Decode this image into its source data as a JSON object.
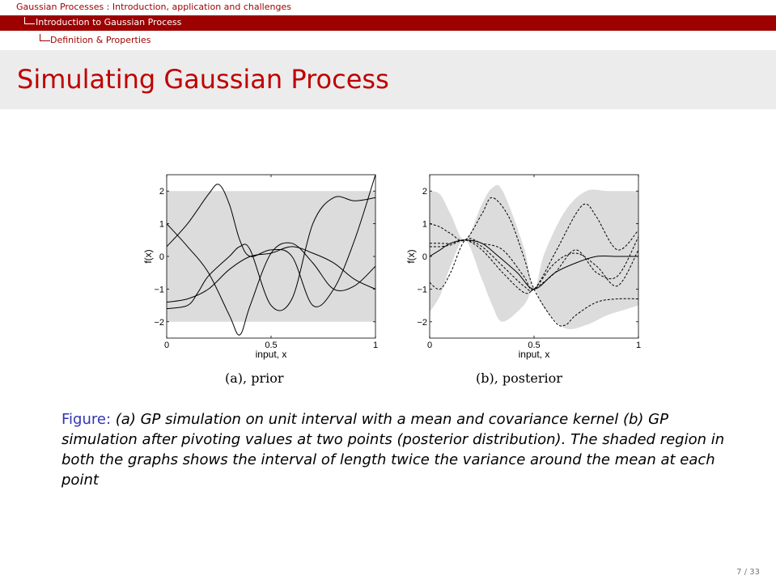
{
  "header": {
    "section": "Gaussian Processes : Introduction, application and challenges",
    "subsection": "Introduction to Gaussian Process",
    "subsubsection": "Definition & Properties"
  },
  "slide_title": "Simulating Gaussian Process",
  "figure": {
    "caption_label": "Figure:",
    "caption_text": "(a) GP simulation on unit interval with a mean and covariance kernel (b) GP simulation after pivoting values at two points (posterior distribution). The shaded region in both the graphs shows the interval of length twice the variance around the mean at each point",
    "sub_a": "(a), prior",
    "sub_b": "(b), posterior"
  },
  "page_number": "7 / 33",
  "colors": {
    "accent": "#9c0000",
    "title": "#c00000",
    "band": "#dcdcdc",
    "caption_label": "#3333b3"
  },
  "chart_data": [
    {
      "type": "line",
      "title": "",
      "xlabel": "input, x",
      "ylabel": "f(x)",
      "xlim": [
        0,
        1
      ],
      "ylim": [
        -2.5,
        2.5
      ],
      "xticks": [
        0,
        0.5,
        1
      ],
      "xtick_labels": [
        "0",
        "0.5",
        "1"
      ],
      "yticks": [
        -2,
        -1,
        0,
        1,
        2
      ],
      "ytick_labels": [
        "−2",
        "−1",
        "0",
        "1",
        "2"
      ],
      "band": {
        "x": [
          0,
          1
        ],
        "lower": [
          -2,
          -2
        ],
        "upper": [
          2,
          2
        ]
      },
      "series": [
        {
          "style": "solid",
          "x": [
            0,
            0.1,
            0.2,
            0.25,
            0.3,
            0.35,
            0.4,
            0.5,
            0.6,
            0.7,
            0.8,
            0.9,
            1.0
          ],
          "y": [
            0.3,
            1.0,
            1.9,
            2.2,
            1.6,
            0.5,
            0.0,
            0.2,
            0.0,
            -1.5,
            -1.0,
            0.5,
            2.5
          ]
        },
        {
          "style": "solid",
          "x": [
            0,
            0.1,
            0.2,
            0.3,
            0.35,
            0.4,
            0.5,
            0.6,
            0.7,
            0.8,
            0.9,
            1.0
          ],
          "y": [
            1.0,
            0.3,
            -0.5,
            -1.8,
            -2.4,
            -1.5,
            0.1,
            0.4,
            -0.2,
            -1.0,
            -0.9,
            -0.3
          ]
        },
        {
          "style": "solid",
          "x": [
            0,
            0.1,
            0.2,
            0.3,
            0.4,
            0.5,
            0.6,
            0.7,
            0.8,
            0.9,
            1.0
          ],
          "y": [
            -1.4,
            -1.3,
            -1.0,
            -0.4,
            0.0,
            0.1,
            0.3,
            0.1,
            -0.2,
            -0.7,
            -1.0
          ]
        },
        {
          "style": "solid",
          "x": [
            0,
            0.1,
            0.15,
            0.2,
            0.3,
            0.35,
            0.4,
            0.5,
            0.6,
            0.7,
            0.8,
            0.9,
            1.0
          ],
          "y": [
            -1.6,
            -1.5,
            -1.1,
            -0.6,
            0.0,
            0.3,
            0.2,
            -1.5,
            -1.3,
            1.0,
            1.8,
            1.7,
            1.8
          ]
        }
      ]
    },
    {
      "type": "line",
      "title": "",
      "xlabel": "input, x",
      "ylabel": "f(x)",
      "xlim": [
        0,
        1
      ],
      "ylim": [
        -2.5,
        2.5
      ],
      "xticks": [
        0,
        0.5,
        1
      ],
      "xtick_labels": [
        "0",
        "0.5",
        "1"
      ],
      "yticks": [
        -2,
        -1,
        0,
        1,
        2
      ],
      "ytick_labels": [
        "−2",
        "−1",
        "0",
        "1",
        "2"
      ],
      "pivot_points": [
        [
          0.17,
          0.5
        ],
        [
          0.5,
          -1.0
        ]
      ],
      "band": {
        "x": [
          0,
          0.05,
          0.1,
          0.17,
          0.25,
          0.3,
          0.35,
          0.45,
          0.5,
          0.55,
          0.65,
          0.75,
          0.85,
          0.95,
          1.0
        ],
        "lower": [
          -1.7,
          -1.2,
          -0.3,
          0.5,
          -0.7,
          -1.5,
          -2.0,
          -1.5,
          -1.0,
          -1.6,
          -2.2,
          -2.1,
          -1.8,
          -1.6,
          -1.5
        ],
        "upper": [
          2.0,
          1.9,
          1.3,
          0.5,
          1.6,
          2.1,
          2.0,
          0.3,
          -1.0,
          0.1,
          1.4,
          2.0,
          2.0,
          2.0,
          2.0
        ]
      },
      "series": [
        {
          "style": "solid",
          "x": [
            0,
            0.05,
            0.1,
            0.17,
            0.25,
            0.33,
            0.42,
            0.5,
            0.6,
            0.7,
            0.8,
            0.9,
            1.0
          ],
          "y": [
            0.0,
            0.2,
            0.4,
            0.5,
            0.4,
            0.0,
            -0.5,
            -1.0,
            -0.5,
            -0.2,
            0.0,
            0.0,
            0.0
          ]
        },
        {
          "style": "dashed",
          "x": [
            0,
            0.05,
            0.1,
            0.17,
            0.25,
            0.3,
            0.38,
            0.45,
            0.5,
            0.6,
            0.65,
            0.7,
            0.8,
            0.9,
            1.0
          ],
          "y": [
            1.0,
            0.9,
            0.7,
            0.5,
            1.3,
            1.8,
            1.2,
            0.0,
            -1.0,
            -2.0,
            -2.1,
            -1.8,
            -1.4,
            -1.3,
            -1.3
          ]
        },
        {
          "style": "dashed",
          "x": [
            0,
            0.05,
            0.1,
            0.17,
            0.25,
            0.35,
            0.45,
            0.5,
            0.6,
            0.7,
            0.75,
            0.8,
            0.9,
            1.0
          ],
          "y": [
            -0.8,
            -1.0,
            -0.5,
            0.5,
            0.4,
            0.2,
            -0.6,
            -1.0,
            0.1,
            1.3,
            1.6,
            1.2,
            0.2,
            0.8
          ]
        },
        {
          "style": "dashed",
          "x": [
            0,
            0.05,
            0.1,
            0.17,
            0.25,
            0.35,
            0.45,
            0.5,
            0.6,
            0.7,
            0.8,
            0.9,
            1.0
          ],
          "y": [
            0.3,
            0.3,
            0.35,
            0.5,
            0.3,
            -0.3,
            -0.9,
            -1.0,
            -0.2,
            0.1,
            -0.3,
            -0.9,
            0.2
          ]
        },
        {
          "style": "dashed",
          "x": [
            0,
            0.05,
            0.1,
            0.17,
            0.25,
            0.35,
            0.45,
            0.5,
            0.6,
            0.7,
            0.8,
            0.9,
            1.0
          ],
          "y": [
            0.4,
            0.4,
            0.4,
            0.5,
            0.2,
            -0.5,
            -1.1,
            -1.0,
            -0.5,
            0.2,
            -0.5,
            -0.6,
            0.6
          ]
        }
      ]
    }
  ]
}
